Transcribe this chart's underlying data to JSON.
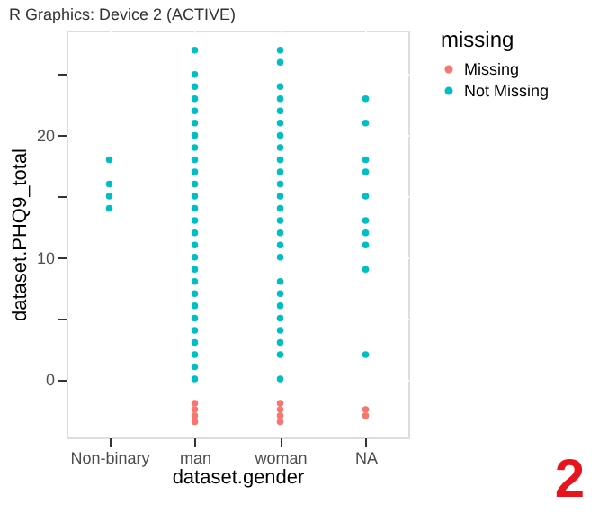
{
  "chart_data": {
    "type": "scatter",
    "title": "R Graphics: Device 2 (ACTIVE)",
    "xlabel": "dataset.gender",
    "ylabel": "dataset.PHQ9_total",
    "legend_title": "missing",
    "categories": [
      "Non-binary",
      "man",
      "woman",
      "NA"
    ],
    "series": [
      {
        "name": "Missing",
        "color": "#f8766d",
        "x": [
          "man",
          "man",
          "man",
          "man",
          "woman",
          "woman",
          "woman",
          "woman",
          "NA",
          "NA"
        ],
        "values": [
          -2,
          -2.5,
          -3,
          -3.5,
          -2,
          -2.5,
          -3,
          -3.5,
          -2.5,
          -3
        ]
      },
      {
        "name": "Not Missing",
        "color": "#00bfc4",
        "x": [
          "Non-binary",
          "Non-binary",
          "Non-binary",
          "Non-binary",
          "man",
          "man",
          "man",
          "man",
          "man",
          "man",
          "man",
          "man",
          "man",
          "man",
          "man",
          "man",
          "man",
          "man",
          "man",
          "man",
          "man",
          "man",
          "man",
          "man",
          "man",
          "man",
          "man",
          "man",
          "man",
          "man",
          "man",
          "woman",
          "woman",
          "woman",
          "woman",
          "woman",
          "woman",
          "woman",
          "woman",
          "woman",
          "woman",
          "woman",
          "woman",
          "woman",
          "woman",
          "woman",
          "woman",
          "woman",
          "woman",
          "woman",
          "woman",
          "woman",
          "woman",
          "woman",
          "woman",
          "woman",
          "NA",
          "NA",
          "NA",
          "NA",
          "NA",
          "NA",
          "NA",
          "NA",
          "NA",
          "NA"
        ],
        "values": [
          18,
          16,
          15,
          14,
          27,
          25,
          24,
          23,
          22,
          21,
          20,
          19,
          18,
          17,
          16,
          15,
          14,
          13,
          12,
          11,
          10,
          9,
          8,
          7,
          6,
          5,
          4,
          3,
          2,
          1,
          0,
          27,
          26,
          24,
          23,
          22,
          21,
          20,
          19,
          18,
          17,
          16,
          15,
          14,
          13,
          12,
          11,
          10,
          8,
          7,
          6,
          5,
          4,
          3,
          2,
          0,
          23,
          21,
          18,
          17,
          15,
          13,
          12,
          11,
          9,
          2
        ]
      }
    ],
    "ylim": [
      -4.8,
      28.6
    ],
    "yticks": [
      0,
      {
        "value": 5,
        "label": null
      },
      10,
      {
        "value": 15,
        "label": null
      },
      20,
      {
        "value": 25,
        "label": null
      }
    ],
    "grid": true,
    "legend": "right",
    "annotations": [
      "2"
    ]
  }
}
